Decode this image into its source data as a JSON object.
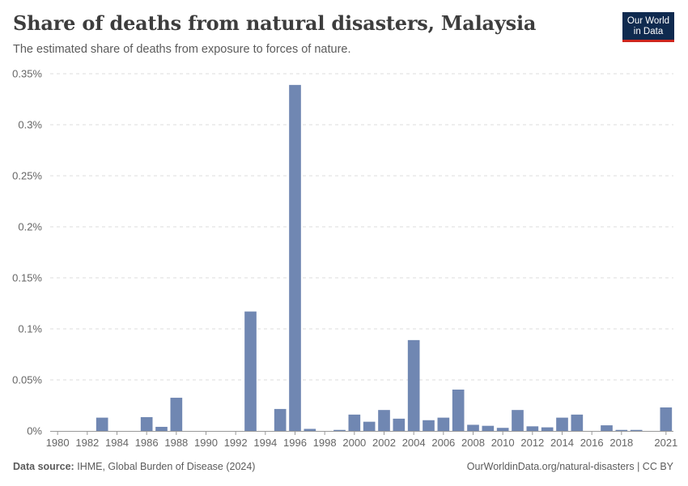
{
  "header": {
    "title": "Share of deaths from natural disasters, Malaysia",
    "subtitle": "The estimated share of deaths from exposure to forces of nature."
  },
  "logo": {
    "line1": "Our World",
    "line2": "in Data"
  },
  "footer": {
    "source_label": "Data source:",
    "source_text": "IHME, Global Burden of Disease (2024)",
    "url_text": "OurWorldinData.org/natural-disasters | CC BY"
  },
  "colors": {
    "bar": "#7087b2",
    "grid": "#dddddd",
    "axis": "#999999"
  },
  "chart_data": {
    "type": "bar",
    "title": "Share of deaths from natural disasters, Malaysia",
    "subtitle": "The estimated share of deaths from exposure to forces of nature.",
    "xlabel": "",
    "ylabel": "",
    "ylim": [
      0,
      0.35
    ],
    "y_ticks": [
      {
        "value": 0,
        "label": "0%"
      },
      {
        "value": 0.05,
        "label": "0.05%"
      },
      {
        "value": 0.1,
        "label": "0.1%"
      },
      {
        "value": 0.15,
        "label": "0.15%"
      },
      {
        "value": 0.2,
        "label": "0.2%"
      },
      {
        "value": 0.25,
        "label": "0.25%"
      },
      {
        "value": 0.3,
        "label": "0.3%"
      },
      {
        "value": 0.35,
        "label": "0.35%"
      }
    ],
    "x_ticks": [
      "1980",
      "1982",
      "1984",
      "1986",
      "1988",
      "1990",
      "1992",
      "1994",
      "1996",
      "1998",
      "2000",
      "2002",
      "2004",
      "2006",
      "2008",
      "2010",
      "2012",
      "2014",
      "2016",
      "2018",
      "2021"
    ],
    "categories": [
      "1980",
      "1981",
      "1982",
      "1983",
      "1984",
      "1985",
      "1986",
      "1987",
      "1988",
      "1989",
      "1990",
      "1991",
      "1992",
      "1993",
      "1994",
      "1995",
      "1996",
      "1997",
      "1998",
      "1999",
      "2000",
      "2001",
      "2002",
      "2003",
      "2004",
      "2005",
      "2006",
      "2007",
      "2008",
      "2009",
      "2010",
      "2011",
      "2012",
      "2013",
      "2014",
      "2015",
      "2016",
      "2017",
      "2018",
      "2019",
      "2020",
      "2021"
    ],
    "values": [
      0,
      0,
      0,
      0.013,
      0,
      0,
      0.0135,
      0.004,
      0.0325,
      0,
      0,
      0,
      0,
      0.117,
      0,
      0.0215,
      0.339,
      0.002,
      0,
      0.001,
      0.016,
      0.009,
      0.0205,
      0.012,
      0.089,
      0.0105,
      0.013,
      0.0405,
      0.006,
      0.005,
      0.003,
      0.0205,
      0.0045,
      0.0035,
      0.013,
      0.016,
      0,
      0.0055,
      0.001,
      0.001,
      0,
      0.023
    ],
    "grid": true,
    "legend": "none"
  }
}
